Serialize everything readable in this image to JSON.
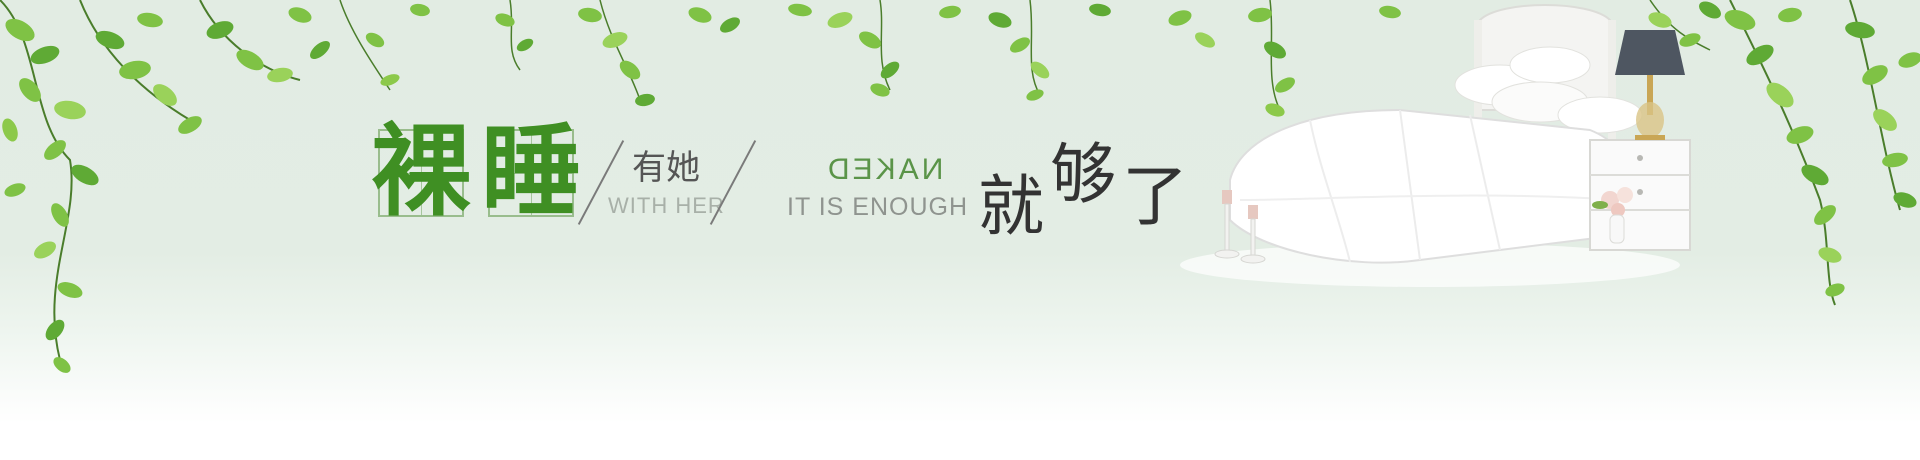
{
  "banner": {
    "headline": {
      "char_1": "裸",
      "char_2": "睡",
      "with_cn": "有她",
      "with_en": "WITH HER",
      "naked_en": "NAKED",
      "enough_en": "IT IS ENOUGH",
      "enough_cn_1": "就",
      "enough_cn_2": "够",
      "enough_cn_3": "了"
    },
    "colors": {
      "leaf_light": "#8cc94a",
      "leaf_dark": "#3f8f23",
      "background": "#e3ede4",
      "text_dark": "#333333",
      "accent_green": "#5a9448"
    },
    "scene": {
      "bed_icon": "bed-icon",
      "lamp_icon": "lamp-icon",
      "nightstand_icon": "nightstand-icon",
      "candle_icon": "candle-icon",
      "flower_vase_icon": "flower-vase-icon",
      "vine_icon": "vine-icon"
    }
  }
}
